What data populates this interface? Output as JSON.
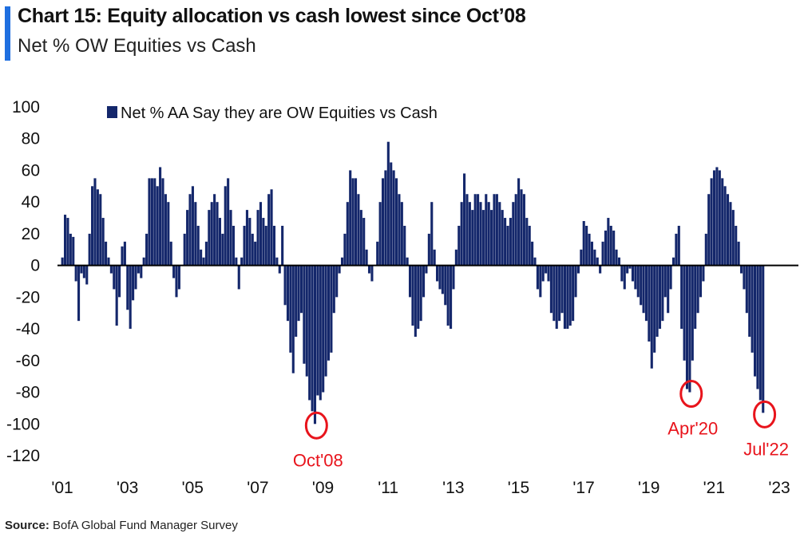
{
  "header": {
    "title": "Chart 15: Equity allocation vs cash lowest since Oct’08",
    "subtitle": "Net % OW Equities vs Cash"
  },
  "source": {
    "label": "Source:",
    "text": "BofA Global Fund Manager Survey"
  },
  "colors": {
    "accent": "#1f6fe0",
    "bars": "#14276b",
    "annotation": "#e8141c",
    "axis": "#000000"
  },
  "chart_data": {
    "type": "bar",
    "title": "Chart 15: Equity allocation vs cash lowest since Oct’08",
    "subtitle": "Net % OW Equities vs Cash",
    "xlabel": "",
    "ylabel": "",
    "ylim": [
      -120,
      100
    ],
    "yticks": [
      100,
      80,
      60,
      40,
      20,
      0,
      -20,
      -40,
      -60,
      -80,
      -100,
      -120
    ],
    "xlim": [
      "2001-01",
      "2023-11"
    ],
    "xticks": [
      "'01",
      "'03",
      "'05",
      "'07",
      "'09",
      "'11",
      "'13",
      "'15",
      "'17",
      "'19",
      "'21",
      "'23"
    ],
    "legend": {
      "position": "top-left",
      "entries": [
        "Net % AA Say they are OW Equities vs Cash"
      ]
    },
    "grid": false,
    "annotations": [
      {
        "text": "Oct'08",
        "date": "2008-10",
        "value": -100
      },
      {
        "text": "Apr'20",
        "date": "2020-04",
        "value": -80
      },
      {
        "text": "Jul'22",
        "date": "2022-07",
        "value": -93
      }
    ],
    "series": [
      {
        "name": "Net % AA Say they are OW Equities vs Cash",
        "x": [
          "2001-01",
          "2001-02",
          "2001-03",
          "2001-04",
          "2001-05",
          "2001-06",
          "2001-07",
          "2001-08",
          "2001-09",
          "2001-10",
          "2001-11",
          "2001-12",
          "2002-01",
          "2002-02",
          "2002-03",
          "2002-04",
          "2002-05",
          "2002-06",
          "2002-07",
          "2002-08",
          "2002-09",
          "2002-10",
          "2002-11",
          "2002-12",
          "2003-01",
          "2003-02",
          "2003-03",
          "2003-04",
          "2003-05",
          "2003-06",
          "2003-07",
          "2003-08",
          "2003-09",
          "2003-10",
          "2003-11",
          "2003-12",
          "2004-01",
          "2004-02",
          "2004-03",
          "2004-04",
          "2004-05",
          "2004-06",
          "2004-07",
          "2004-08",
          "2004-09",
          "2004-10",
          "2004-11",
          "2004-12",
          "2005-01",
          "2005-02",
          "2005-03",
          "2005-04",
          "2005-05",
          "2005-06",
          "2005-07",
          "2005-08",
          "2005-09",
          "2005-10",
          "2005-11",
          "2005-12",
          "2006-01",
          "2006-02",
          "2006-03",
          "2006-04",
          "2006-05",
          "2006-06",
          "2006-07",
          "2006-08",
          "2006-09",
          "2006-10",
          "2006-11",
          "2006-12",
          "2007-01",
          "2007-02",
          "2007-03",
          "2007-04",
          "2007-05",
          "2007-06",
          "2007-07",
          "2007-08",
          "2007-09",
          "2007-10",
          "2007-11",
          "2007-12",
          "2008-01",
          "2008-02",
          "2008-03",
          "2008-04",
          "2008-05",
          "2008-06",
          "2008-07",
          "2008-08",
          "2008-09",
          "2008-10",
          "2008-11",
          "2008-12",
          "2009-01",
          "2009-02",
          "2009-03",
          "2009-04",
          "2009-05",
          "2009-06",
          "2009-07",
          "2009-08",
          "2009-09",
          "2009-10",
          "2009-11",
          "2009-12",
          "2010-01",
          "2010-02",
          "2010-03",
          "2010-04",
          "2010-05",
          "2010-06",
          "2010-07",
          "2010-08",
          "2010-09",
          "2010-10",
          "2010-11",
          "2010-12",
          "2011-01",
          "2011-02",
          "2011-03",
          "2011-04",
          "2011-05",
          "2011-06",
          "2011-07",
          "2011-08",
          "2011-09",
          "2011-10",
          "2011-11",
          "2011-12",
          "2012-01",
          "2012-02",
          "2012-03",
          "2012-04",
          "2012-05",
          "2012-06",
          "2012-07",
          "2012-08",
          "2012-09",
          "2012-10",
          "2012-11",
          "2012-12",
          "2013-01",
          "2013-02",
          "2013-03",
          "2013-04",
          "2013-05",
          "2013-06",
          "2013-07",
          "2013-08",
          "2013-09",
          "2013-10",
          "2013-11",
          "2013-12",
          "2014-01",
          "2014-02",
          "2014-03",
          "2014-04",
          "2014-05",
          "2014-06",
          "2014-07",
          "2014-08",
          "2014-09",
          "2014-10",
          "2014-11",
          "2014-12",
          "2015-01",
          "2015-02",
          "2015-03",
          "2015-04",
          "2015-05",
          "2015-06",
          "2015-07",
          "2015-08",
          "2015-09",
          "2015-10",
          "2015-11",
          "2015-12",
          "2016-01",
          "2016-02",
          "2016-03",
          "2016-04",
          "2016-05",
          "2016-06",
          "2016-07",
          "2016-08",
          "2016-09",
          "2016-10",
          "2016-11",
          "2016-12",
          "2017-01",
          "2017-02",
          "2017-03",
          "2017-04",
          "2017-05",
          "2017-06",
          "2017-07",
          "2017-08",
          "2017-09",
          "2017-10",
          "2017-11",
          "2017-12",
          "2018-01",
          "2018-02",
          "2018-03",
          "2018-04",
          "2018-05",
          "2018-06",
          "2018-07",
          "2018-08",
          "2018-09",
          "2018-10",
          "2018-11",
          "2018-12",
          "2019-01",
          "2019-02",
          "2019-03",
          "2019-04",
          "2019-05",
          "2019-06",
          "2019-07",
          "2019-08",
          "2019-09",
          "2019-10",
          "2019-11",
          "2019-12",
          "2020-01",
          "2020-02",
          "2020-03",
          "2020-04",
          "2020-05",
          "2020-06",
          "2020-07",
          "2020-08",
          "2020-09",
          "2020-10",
          "2020-11",
          "2020-12",
          "2021-01",
          "2021-02",
          "2021-03",
          "2021-04",
          "2021-05",
          "2021-06",
          "2021-07",
          "2021-08",
          "2021-09",
          "2021-10",
          "2021-11",
          "2021-12",
          "2022-01",
          "2022-02",
          "2022-03",
          "2022-04",
          "2022-05",
          "2022-06",
          "2022-07"
        ],
        "values": [
          5,
          32,
          30,
          20,
          18,
          -10,
          -35,
          -5,
          -8,
          -12,
          20,
          50,
          55,
          48,
          45,
          30,
          15,
          5,
          -5,
          -15,
          -38,
          -20,
          12,
          15,
          -28,
          -40,
          -22,
          -15,
          -5,
          -8,
          5,
          20,
          55,
          55,
          55,
          50,
          62,
          55,
          45,
          40,
          15,
          -8,
          -20,
          -15,
          0,
          20,
          35,
          45,
          50,
          40,
          25,
          10,
          5,
          15,
          35,
          40,
          45,
          40,
          30,
          20,
          50,
          55,
          35,
          25,
          5,
          -15,
          5,
          25,
          35,
          30,
          20,
          15,
          35,
          40,
          30,
          25,
          45,
          48,
          25,
          5,
          -5,
          25,
          -25,
          -35,
          -55,
          -68,
          -45,
          -35,
          -30,
          -62,
          -70,
          -85,
          -92,
          -100,
          -82,
          -85,
          -80,
          -70,
          -60,
          -55,
          -30,
          -20,
          -5,
          5,
          20,
          40,
          60,
          55,
          55,
          45,
          35,
          30,
          10,
          -5,
          -10,
          0,
          15,
          40,
          55,
          60,
          78,
          65,
          60,
          55,
          45,
          40,
          25,
          5,
          -20,
          -38,
          -45,
          -40,
          -35,
          -20,
          -5,
          20,
          40,
          10,
          -10,
          -15,
          -18,
          -25,
          -38,
          -40,
          -15,
          10,
          25,
          40,
          58,
          45,
          40,
          35,
          45,
          45,
          40,
          35,
          45,
          40,
          35,
          45,
          45,
          40,
          35,
          30,
          25,
          30,
          40,
          45,
          55,
          48,
          45,
          30,
          25,
          15,
          5,
          -15,
          -20,
          -10,
          -5,
          -10,
          -30,
          -35,
          -40,
          -35,
          -30,
          -40,
          -40,
          -38,
          -35,
          -20,
          -5,
          10,
          28,
          25,
          20,
          15,
          10,
          5,
          -5,
          15,
          22,
          30,
          25,
          22,
          10,
          5,
          -10,
          -15,
          -5,
          -2,
          -10,
          -15,
          -20,
          -25,
          -30,
          -35,
          -48,
          -65,
          -55,
          -45,
          -40,
          -35,
          -20,
          -30,
          -15,
          5,
          20,
          25,
          -40,
          -60,
          -78,
          -80,
          -60,
          -40,
          -30,
          -20,
          -10,
          20,
          45,
          55,
          60,
          62,
          60,
          55,
          50,
          45,
          40,
          35,
          25,
          15,
          -5,
          -15,
          -30,
          -45,
          -55,
          -70,
          -78,
          -85,
          -93
        ]
      }
    ]
  }
}
